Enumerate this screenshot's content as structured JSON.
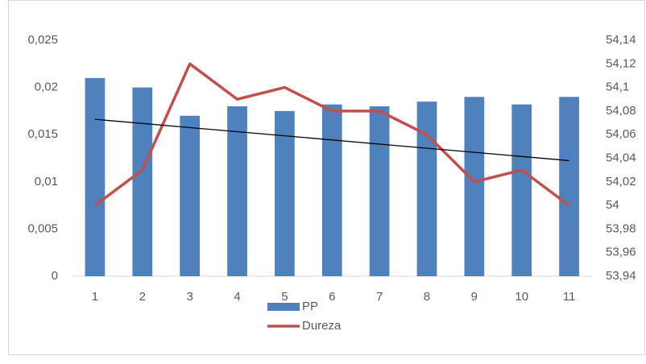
{
  "chart_data": {
    "type": "bar",
    "categories": [
      "1",
      "2",
      "3",
      "4",
      "5",
      "6",
      "7",
      "8",
      "9",
      "10",
      "11"
    ],
    "series": [
      {
        "name": "PP",
        "color": "#4f81bd",
        "values": [
          0.021,
          0.02,
          0.017,
          0.018,
          0.0175,
          0.0182,
          0.018,
          0.0185,
          0.019,
          0.0182,
          0.019
        ]
      },
      {
        "name": "Dureza",
        "color": "#c0504d",
        "axis": "y2",
        "values": [
          54,
          54.03,
          54.12,
          54.09,
          54.1,
          54.08,
          54.08,
          54.06,
          54.02,
          54.03,
          54
        ]
      }
    ],
    "trendline": {
      "color": "#000000",
      "axis": "y2",
      "x": [
        1,
        11
      ],
      "values": [
        54.073,
        54.038
      ]
    },
    "ylim": [
      0,
      0.025
    ],
    "yticks": [
      0,
      {
        "value": 0.005,
        "label": "0,005"
      },
      {
        "value": 0.01,
        "label": "0,01"
      },
      {
        "value": 0.015,
        "label": "0,015"
      },
      {
        "value": 0.02,
        "label": "0,02"
      },
      {
        "value": 0.025,
        "label": "0,025"
      }
    ],
    "y2lim": [
      53.94,
      54.14
    ],
    "y2ticks": [
      {
        "value": 53.94,
        "label": "53,94"
      },
      {
        "value": 53.96,
        "label": "53,96"
      },
      {
        "value": 53.98,
        "label": "53,98"
      },
      54,
      {
        "value": 54.02,
        "label": "54,02"
      },
      {
        "value": 54.04,
        "label": "54,04"
      },
      {
        "value": 54.06,
        "label": "54,06"
      },
      {
        "value": 54.08,
        "label": "54,08"
      },
      {
        "value": 54.1,
        "label": "54,1"
      },
      {
        "value": 54.12,
        "label": "54,12"
      },
      {
        "value": 54.14,
        "label": "54,14"
      }
    ],
    "grid": false
  }
}
